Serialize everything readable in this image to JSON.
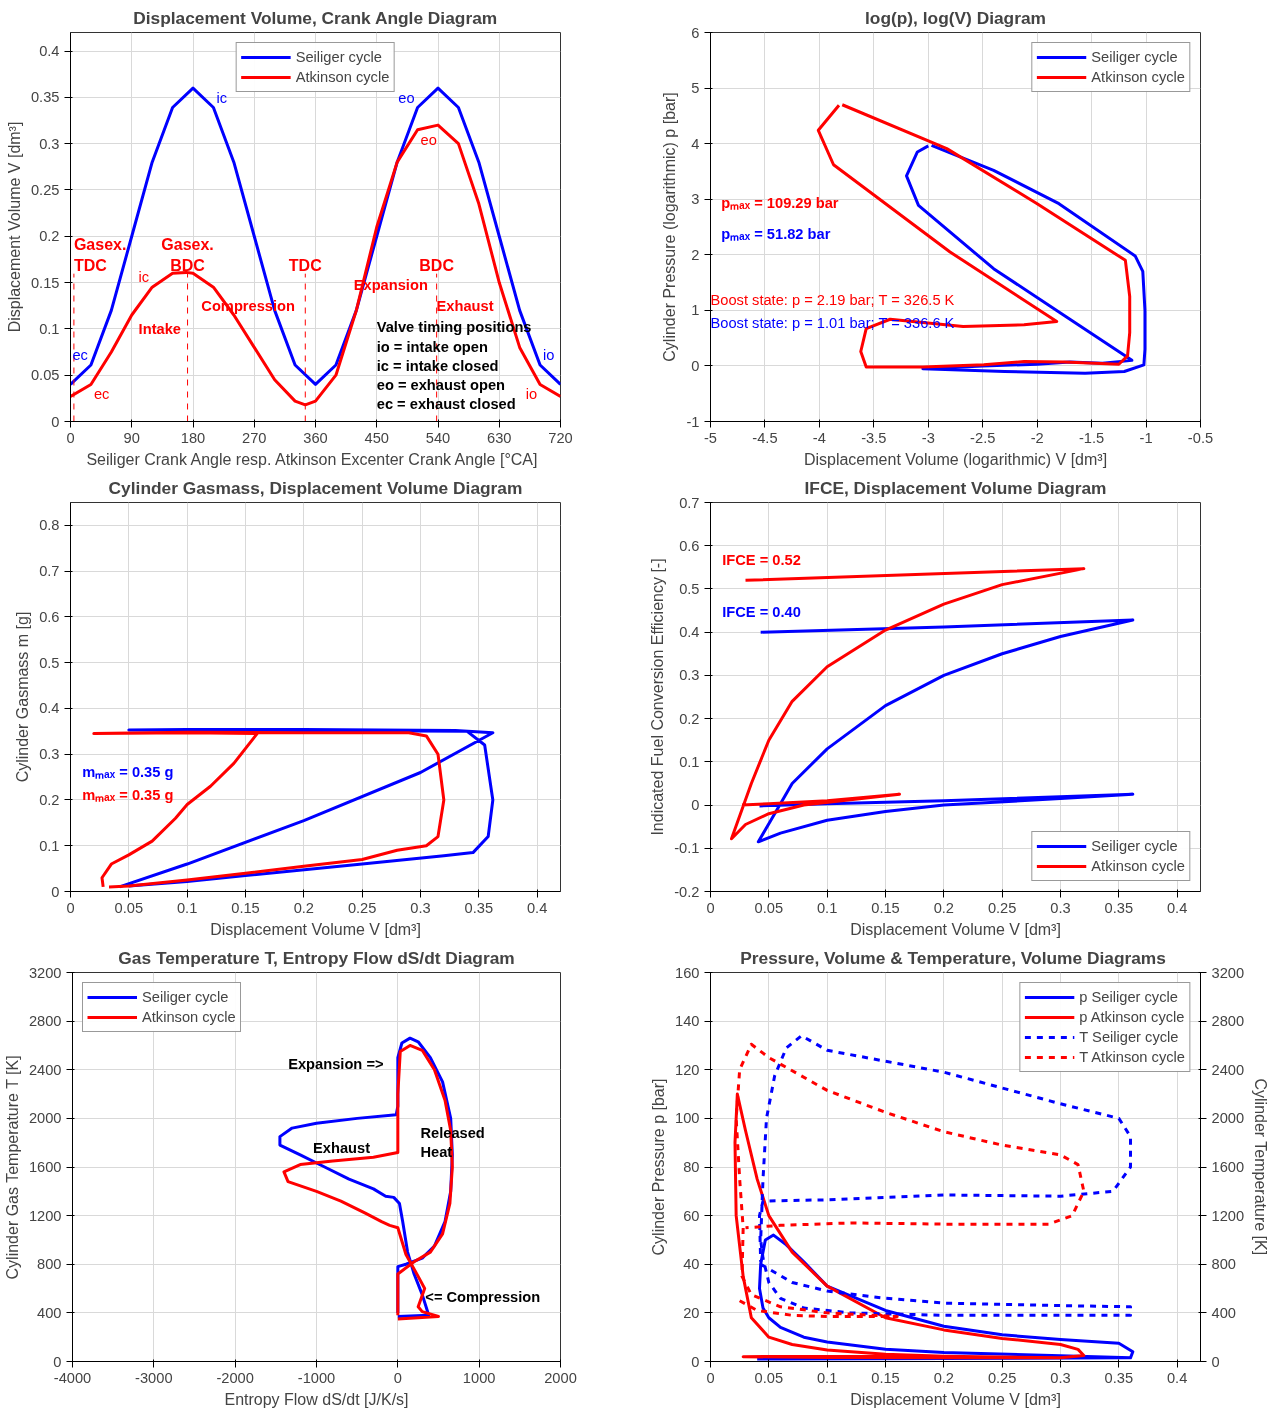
{
  "chart_data": [
    {
      "type": "line",
      "title": "Displacement Volume, Crank Angle Diagram",
      "xlabel": "Seiliger Crank Angle resp. Atkinson Excenter Crank Angle  [°CA]",
      "ylabel": "Displacement Volume V [dm³]",
      "xlim": [
        0,
        720
      ],
      "ylim": [
        0,
        0.42
      ],
      "xticks": [
        0,
        90,
        180,
        270,
        360,
        450,
        540,
        630,
        720
      ],
      "yticks": [
        0,
        0.05,
        0.1,
        0.15,
        0.2,
        0.25,
        0.3,
        0.35,
        0.4
      ],
      "grid": true,
      "legend": "top",
      "line_style": "solid",
      "series": [
        {
          "name": "Seiliger cycle",
          "color": "#0000ff",
          "x": [
            0,
            30,
            60,
            90,
            120,
            150,
            180,
            210,
            240,
            270,
            300,
            330,
            360,
            390,
            420,
            450,
            480,
            510,
            540,
            570,
            600,
            630,
            660,
            690,
            720
          ],
          "values": [
            0.04,
            0.061,
            0.12,
            0.2,
            0.28,
            0.339,
            0.36,
            0.339,
            0.28,
            0.2,
            0.12,
            0.061,
            0.04,
            0.061,
            0.12,
            0.2,
            0.28,
            0.339,
            0.36,
            0.339,
            0.28,
            0.2,
            0.12,
            0.061,
            0.04
          ]
        },
        {
          "name": "Atkinson cycle",
          "color": "#ff0000",
          "x": [
            0,
            30,
            60,
            90,
            120,
            150,
            170,
            180,
            210,
            240,
            270,
            300,
            330,
            345,
            360,
            390,
            420,
            450,
            480,
            510,
            540,
            570,
            600,
            630,
            660,
            690,
            720
          ],
          "values": [
            0.027,
            0.04,
            0.075,
            0.115,
            0.145,
            0.16,
            0.161,
            0.16,
            0.145,
            0.115,
            0.08,
            0.045,
            0.022,
            0.018,
            0.022,
            0.05,
            0.12,
            0.21,
            0.28,
            0.315,
            0.32,
            0.3,
            0.235,
            0.15,
            0.08,
            0.04,
            0.027
          ]
        }
      ],
      "ref_lines": [
        {
          "axis": "x",
          "value": 5,
          "label": "Gasex.\nTDC",
          "color": "#ff0000",
          "line_style": "dashed"
        },
        {
          "axis": "x",
          "value": 172,
          "label": "Gasex.\nBDC",
          "color": "#ff0000",
          "line_style": "dashed"
        },
        {
          "axis": "x",
          "value": 345,
          "label": "TDC",
          "color": "#ff0000",
          "line_style": "dashed"
        },
        {
          "axis": "x",
          "value": 538,
          "label": "BDC",
          "color": "#ff0000",
          "line_style": "dashed"
        }
      ],
      "annotations": [
        "Intake",
        "Compression",
        "Expansion",
        "Exhaust",
        "Valve timing positions\nio =  intake open\nic  = intake closed\neo = exhaust open\nec = exhaust closed",
        {
          "text": "ec",
          "x": 30,
          "y": 0.061
        },
        {
          "text": "ec",
          "x": 30,
          "y": 0.04
        },
        {
          "text": "ic",
          "x": 210,
          "y": 0.339
        },
        {
          "text": "ic",
          "x": 120,
          "y": 0.145
        },
        {
          "text": "eo",
          "x": 510,
          "y": 0.339
        },
        {
          "text": "eo",
          "x": 510,
          "y": 0.315
        },
        {
          "text": "io",
          "x": 690,
          "y": 0.061
        },
        {
          "text": "io",
          "x": 690,
          "y": 0.04
        }
      ]
    },
    {
      "type": "line",
      "title": "log(p), log(V) Diagram",
      "xlabel": "Displacement Volume (logarithmic) V [dm³]",
      "ylabel": "Cylinder Pressure (logarithmic) p [bar]",
      "xlim": [
        -5,
        -0.5
      ],
      "ylim": [
        -1,
        6
      ],
      "xticks": [
        -5,
        -4.5,
        -4,
        -3.5,
        -3,
        -2.5,
        -2,
        -1.5,
        -1,
        -0.5
      ],
      "yticks": [
        -1,
        0,
        1,
        2,
        3,
        4,
        5,
        6
      ],
      "grid": true,
      "legend": "top right",
      "line_style": "solid",
      "series": [
        {
          "name": "Seiliger cycle",
          "color": "#0000ff",
          "x": [
            -2.97,
            -2.4,
            -1.8,
            -1.1,
            -1.03,
            -1.01,
            -1.01,
            -1.02,
            -1.2,
            -1.56,
            -2.3,
            -3.05,
            -2.5,
            -2.0,
            -1.7,
            -1.4,
            -1.13,
            -1.8,
            -2.4,
            -3.09,
            -3.2,
            -3.1,
            -3.0
          ],
          "values": [
            3.97,
            3.52,
            2.92,
            1.98,
            1.7,
            1.0,
            0.3,
            0.02,
            -0.1,
            -0.13,
            -0.1,
            -0.05,
            0.0,
            0.03,
            0.07,
            0.05,
            0.1,
            0.97,
            1.75,
            2.89,
            3.42,
            3.85,
            3.96
          ]
        },
        {
          "name": "Atkinson cycle",
          "color": "#ff0000",
          "x": [
            -3.79,
            -2.83,
            -2.0,
            -1.19,
            -1.15,
            -1.15,
            -1.17,
            -1.25,
            -1.75,
            -2.12,
            -2.49,
            -3.05,
            -3.57,
            -3.62,
            -3.57,
            -3.35,
            -2.68,
            -2.12,
            -1.82,
            -2.8,
            -3.87,
            -4.01,
            -3.82
          ],
          "values": [
            4.7,
            3.91,
            2.92,
            1.9,
            1.25,
            0.6,
            0.18,
            0.03,
            0.07,
            0.08,
            0.02,
            -0.02,
            -0.02,
            0.26,
            0.67,
            0.84,
            0.71,
            0.74,
            0.8,
            2.05,
            3.62,
            4.24,
            4.69
          ]
        }
      ],
      "annotations": [
        "pₘₐₓ = 109.29 bar",
        "pₘₐₓ = 51.82 bar",
        "Boost state: p = 2.19 bar;  T = 326.5 K",
        "Boost state: p = 1.01 bar;  T = 336.6 K"
      ]
    },
    {
      "type": "line",
      "title": "Cylinder Gasmass, Displacement Volume Diagram",
      "xlabel": "Displacement Volume V [dm³]",
      "ylabel": "Cylinder Gasmass m [g]",
      "xlim": [
        0,
        0.42
      ],
      "ylim": [
        0,
        0.85
      ],
      "xticks": [
        0,
        0.05,
        0.1,
        0.15,
        0.2,
        0.25,
        0.3,
        0.35,
        0.4
      ],
      "yticks": [
        0,
        0.1,
        0.2,
        0.3,
        0.4,
        0.5,
        0.6,
        0.7,
        0.8
      ],
      "grid": true,
      "line_style": "solid",
      "series": [
        {
          "color": "#0000ff",
          "x": [
            0.042,
            0.1,
            0.2,
            0.3,
            0.362,
            0.33,
            0.2,
            0.1,
            0.05,
            0.2,
            0.34,
            0.355,
            0.362,
            0.358,
            0.345,
            0.32,
            0.25,
            0.15,
            0.1,
            0.05
          ],
          "values": [
            0.01,
            0.06,
            0.155,
            0.26,
            0.347,
            0.352,
            0.354,
            0.354,
            0.353,
            0.352,
            0.35,
            0.32,
            0.2,
            0.12,
            0.085,
            0.078,
            0.06,
            0.035,
            0.022,
            0.012
          ]
        },
        {
          "color": "#ff0000",
          "x": [
            0.028,
            0.027,
            0.035,
            0.05,
            0.07,
            0.09,
            0.1,
            0.12,
            0.14,
            0.16,
            0.1,
            0.02,
            0.1,
            0.2,
            0.29,
            0.305,
            0.315,
            0.32,
            0.315,
            0.305,
            0.28,
            0.25,
            0.2,
            0.15,
            0.1,
            0.05,
            0.033
          ],
          "values": [
            0.01,
            0.03,
            0.06,
            0.08,
            0.11,
            0.16,
            0.19,
            0.23,
            0.28,
            0.345,
            0.347,
            0.345,
            0.348,
            0.347,
            0.347,
            0.34,
            0.3,
            0.2,
            0.12,
            0.1,
            0.09,
            0.07,
            0.055,
            0.04,
            0.025,
            0.012,
            0.01
          ]
        }
      ],
      "annotations": [
        "mₘₐₓ = 0.35 g",
        "mₘₐₓ = 0.35 g"
      ]
    },
    {
      "type": "line",
      "title": "IFCE, Displacement Volume Diagram",
      "xlabel": "Displacement Volume V [dm³]",
      "ylabel": "Indicated Fuel Conversion Efficiency [-]",
      "xlim": [
        0,
        0.42
      ],
      "ylim": [
        -0.2,
        0.7
      ],
      "xticks": [
        0,
        0.05,
        0.1,
        0.15,
        0.2,
        0.25,
        0.3,
        0.35,
        0.4
      ],
      "yticks": [
        -0.2,
        -0.1,
        0,
        0.1,
        0.2,
        0.3,
        0.4,
        0.5,
        0.6,
        0.7
      ],
      "grid": true,
      "legend": "bottom right",
      "line_style": "solid",
      "series": [
        {
          "name": "Seiliger cycle",
          "color": "#0000ff",
          "x": [
            0.043,
            0.2,
            0.362,
            0.3,
            0.25,
            0.2,
            0.15,
            0.1,
            0.07,
            0.055,
            0.041,
            0.06,
            0.1,
            0.15,
            0.2,
            0.3,
            0.362,
            0.2,
            0.1,
            0.042
          ],
          "values": [
            0.4,
            0.412,
            0.428,
            0.39,
            0.35,
            0.3,
            0.23,
            0.13,
            0.05,
            -0.02,
            -0.085,
            -0.065,
            -0.035,
            -0.015,
            0.0,
            0.015,
            0.025,
            0.01,
            0.003,
            -0.002
          ]
        },
        {
          "name": "Atkinson cycle",
          "color": "#ff0000",
          "x": [
            0.03,
            0.32,
            0.25,
            0.2,
            0.15,
            0.1,
            0.07,
            0.05,
            0.035,
            0.018,
            0.03,
            0.05,
            0.08,
            0.12,
            0.162,
            0.1,
            0.05,
            0.027
          ],
          "values": [
            0.52,
            0.547,
            0.51,
            0.465,
            0.405,
            0.32,
            0.24,
            0.15,
            0.05,
            -0.078,
            -0.045,
            -0.02,
            0.0,
            0.012,
            0.025,
            0.01,
            0.003,
            0.0
          ]
        }
      ],
      "annotations": [
        "IFCE = 0.52",
        "IFCE = 0.40"
      ]
    },
    {
      "type": "line",
      "title": "Gas Temperature T, Entropy Flow dS/dt Diagram",
      "xlabel": "Entropy Flow dS/dt [J/K/s]",
      "ylabel": "Cylinder Gas Temperature T [K]",
      "xlim": [
        -4000,
        2000
      ],
      "ylim": [
        0,
        3200
      ],
      "xticks": [
        -4000,
        -3000,
        -2000,
        -1000,
        0,
        1000,
        2000
      ],
      "yticks": [
        0,
        400,
        800,
        1200,
        1600,
        2000,
        2400,
        2800,
        3200
      ],
      "grid": true,
      "legend": "top left",
      "line_style": "solid",
      "series": [
        {
          "name": "Seiliger cycle",
          "color": "#0000ff",
          "x": [
            0,
            380,
            300,
            200,
            120,
            60,
            20,
            -50,
            -150,
            -300,
            -600,
            -900,
            -1200,
            -1450,
            -1450,
            -1300,
            -1000,
            -500,
            -20,
            0,
            0,
            50,
            150,
            250,
            400,
            550,
            650,
            670,
            650,
            580,
            450,
            300,
            100,
            0,
            0
          ],
          "values": [
            370,
            380,
            550,
            720,
            900,
            1150,
            1300,
            1350,
            1360,
            1420,
            1500,
            1600,
            1700,
            1780,
            1850,
            1920,
            1960,
            2000,
            2030,
            2100,
            2500,
            2620,
            2660,
            2630,
            2500,
            2300,
            2000,
            1700,
            1400,
            1150,
            950,
            850,
            800,
            780,
            400
          ]
        },
        {
          "name": "Atkinson cycle",
          "color": "#ff0000",
          "x": [
            0,
            500,
            300,
            250,
            330,
            250,
            100,
            0,
            -100,
            -200,
            -400,
            -700,
            -1000,
            -1350,
            -1400,
            -1200,
            -800,
            -300,
            0,
            0,
            30,
            150,
            300,
            450,
            580,
            650,
            670,
            640,
            550,
            400,
            200,
            0,
            0
          ],
          "values": [
            350,
            370,
            410,
            450,
            600,
            700,
            880,
            1100,
            1120,
            1150,
            1220,
            1320,
            1400,
            1480,
            1560,
            1620,
            1650,
            1680,
            1720,
            2200,
            2550,
            2600,
            2560,
            2400,
            2150,
            1900,
            1600,
            1300,
            1050,
            900,
            820,
            720,
            380
          ]
        }
      ],
      "annotations": [
        "Expansion =>",
        "Exhaust",
        "Released\nHeat",
        "<= Compression"
      ]
    },
    {
      "type": "line",
      "title": "Pressure, Volume  & Temperature, Volume Diagrams",
      "xlabel": "Displacement Volume V [dm³]",
      "ylabel": "Cylinder Pressure p [bar]",
      "y2label": "Cylinder Temperature [K]",
      "xlim": [
        0,
        0.42
      ],
      "ylim": [
        0,
        160
      ],
      "y2lim": [
        0,
        3200
      ],
      "xticks": [
        0,
        0.05,
        0.1,
        0.15,
        0.2,
        0.25,
        0.3,
        0.35,
        0.4
      ],
      "yticks": [
        0,
        20,
        40,
        60,
        80,
        100,
        120,
        140,
        160
      ],
      "y2ticks": [
        0,
        400,
        800,
        1200,
        1600,
        2000,
        2400,
        2800,
        3200
      ],
      "grid": true,
      "legend": "top right",
      "series": [
        {
          "name": "p Seiliger cycle",
          "color": "#0000ff",
          "line_style": "solid",
          "x": [
            0.04,
            0.36,
            0.3,
            0.2,
            0.15,
            0.1,
            0.08,
            0.06,
            0.05,
            0.045,
            0.042,
            0.043,
            0.047,
            0.054,
            0.065,
            0.08,
            0.1,
            0.15,
            0.2,
            0.25,
            0.3,
            0.35,
            0.362,
            0.36,
            0.2,
            0.06
          ],
          "values": [
            1,
            1.5,
            2.4,
            3.7,
            5,
            8,
            10,
            14,
            18,
            22,
            30,
            40,
            50,
            52,
            48,
            41,
            31,
            21,
            14.5,
            11,
            9,
            7.5,
            4,
            1.5,
            1.2,
            1
          ]
        },
        {
          "name": "p Atkinson cycle",
          "color": "#ff0000",
          "line_style": "solid",
          "x": [
            0.16,
            0.028,
            0.1,
            0.2,
            0.3,
            0.2,
            0.15,
            0.1,
            0.07,
            0.05,
            0.035,
            0.028,
            0.022,
            0.021,
            0.023,
            0.03,
            0.04,
            0.05,
            0.07,
            0.1,
            0.15,
            0.2,
            0.25,
            0.3,
            0.315,
            0.32,
            0.3
          ],
          "values": [
            2.2,
            2,
            1.6,
            1.5,
            1.5,
            2.2,
            3,
            4.7,
            7,
            10,
            18,
            35,
            60,
            90,
            110,
            95,
            75,
            60,
            45,
            31,
            18,
            13,
            9.5,
            7,
            5,
            2.5,
            1.5
          ]
        },
        {
          "name": "T Seiliger cycle",
          "color": "#0000ff",
          "line_style": "dashed",
          "axis": "y2",
          "x": [
            0.043,
            0.07,
            0.1,
            0.15,
            0.2,
            0.3,
            0.36,
            0.36,
            0.3,
            0.2,
            0.12,
            0.08,
            0.06,
            0.05,
            0.045,
            0.043,
            0.045,
            0.048,
            0.055,
            0.065,
            0.078,
            0.1,
            0.2,
            0.3,
            0.35,
            0.36,
            0.36,
            0.345,
            0.3,
            0.2,
            0.1,
            0.045,
            0.042,
            0.043
          ],
          "values": [
            800,
            650,
            580,
            520,
            480,
            460,
            450,
            380,
            380,
            380,
            400,
            440,
            520,
            650,
            850,
            1000,
            1500,
            2000,
            2350,
            2580,
            2680,
            2560,
            2380,
            2120,
            2000,
            1850,
            1600,
            1400,
            1360,
            1370,
            1330,
            1320,
            1200,
            820
          ]
        },
        {
          "name": "T Atkinson cycle",
          "color": "#ff0000",
          "line_style": "dashed",
          "axis": "y2",
          "x": [
            0.025,
            0.04,
            0.07,
            0.1,
            0.16,
            0.1,
            0.06,
            0.035,
            0.027,
            0.028,
            0.025,
            0.022,
            0.025,
            0.035,
            0.05,
            0.1,
            0.15,
            0.2,
            0.25,
            0.3,
            0.315,
            0.32,
            0.31,
            0.29,
            0.2,
            0.12,
            0.06,
            0.03
          ],
          "values": [
            500,
            420,
            380,
            370,
            370,
            400,
            450,
            550,
            700,
            1100,
            1500,
            2000,
            2400,
            2610,
            2500,
            2230,
            2050,
            1890,
            1780,
            1700,
            1620,
            1400,
            1200,
            1130,
            1130,
            1140,
            1120,
            1100
          ]
        }
      ]
    }
  ]
}
